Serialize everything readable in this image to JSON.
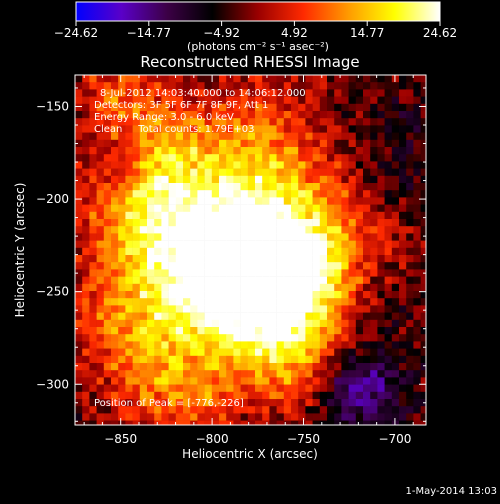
{
  "colorbar": {
    "ticks": [
      "-24.62",
      "-14.77",
      "-4.92",
      "4.92",
      "14.77",
      "24.62"
    ],
    "unit_label": "(photons cm⁻² s⁻¹ asec⁻²)",
    "range": [
      -24.62,
      24.62
    ],
    "colormap": [
      "#0000ff",
      "#5a00c8",
      "#3c0046",
      "#000000",
      "#9a0000",
      "#ff2a00",
      "#ff9c00",
      "#ffff00",
      "#ffffff"
    ]
  },
  "chart_data": {
    "type": "heatmap",
    "title": "Reconstructed RHESSI Image",
    "xlabel": "Heliocentric X (arcsec)",
    "ylabel": "Heliocentric Y (arcsec)",
    "xlim": [
      -875,
      -683
    ],
    "ylim": [
      -322,
      -133
    ],
    "xticks": [
      -850,
      -800,
      -750,
      -700
    ],
    "yticks": [
      -300,
      -250,
      -200,
      -150
    ],
    "xtick_labels": [
      "−850",
      "−800",
      "−750",
      "−700"
    ],
    "ytick_labels": [
      "−300",
      "−250",
      "−200",
      "−150"
    ],
    "annotations": [
      "8-Jul-2012 14:03:40.000 to 14:06:12.000",
      "Detectors: 3F 5F 6F 7F 8F 9F, Att 1",
      "Energy Range: 3.0 - 6.0 keV",
      "Clean     Total counts: 1.79E+03"
    ],
    "peak_label": "Position of Peak = [-776,-226]",
    "peak": [
      -776,
      -226
    ]
  },
  "footer": {
    "timestamp": "1-May-2014 13:03"
  }
}
